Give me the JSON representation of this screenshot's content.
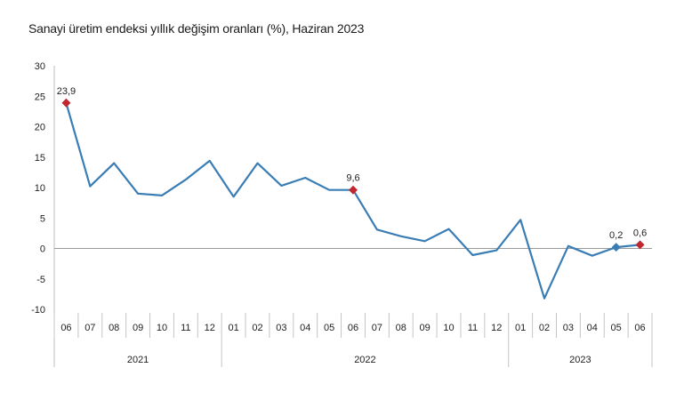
{
  "chart_data": {
    "type": "line",
    "title": "Sanayi üretim endeksi yıllık değişim oranları (%), Haziran 2023",
    "xlabel": "",
    "ylabel": "",
    "ylim": [
      -10,
      30
    ],
    "yticks": [
      "30",
      "25",
      "20",
      "15",
      "10",
      "5",
      "0",
      "-5",
      "-10"
    ],
    "categories": [
      "06",
      "07",
      "08",
      "09",
      "10",
      "11",
      "12",
      "01",
      "02",
      "03",
      "04",
      "05",
      "06",
      "07",
      "08",
      "09",
      "10",
      "11",
      "12",
      "01",
      "02",
      "03",
      "04",
      "05",
      "06"
    ],
    "years": [
      {
        "label": "2021",
        "start": 0,
        "end": 6
      },
      {
        "label": "2022",
        "start": 7,
        "end": 18
      },
      {
        "label": "2023",
        "start": 19,
        "end": 24
      }
    ],
    "series": [
      {
        "name": "",
        "color": "#3a7db5",
        "values": [
          23.9,
          10.2,
          14.0,
          9.0,
          8.7,
          11.3,
          14.4,
          8.5,
          14.0,
          10.3,
          11.6,
          9.6,
          9.6,
          3.1,
          2.0,
          1.2,
          3.2,
          -1.1,
          -0.3,
          4.7,
          -8.2,
          0.4,
          -1.2,
          0.2,
          0.6
        ]
      }
    ],
    "annotations": [
      {
        "index": 0,
        "text": "23,9",
        "color": "#c0282d"
      },
      {
        "index": 12,
        "text": "9,6",
        "color": "#c0282d"
      },
      {
        "index": 23,
        "text": "0,2",
        "color": "#3a7db5"
      },
      {
        "index": 24,
        "text": "0,6",
        "color": "#c0282d"
      }
    ],
    "grid": false,
    "legend": "none"
  }
}
